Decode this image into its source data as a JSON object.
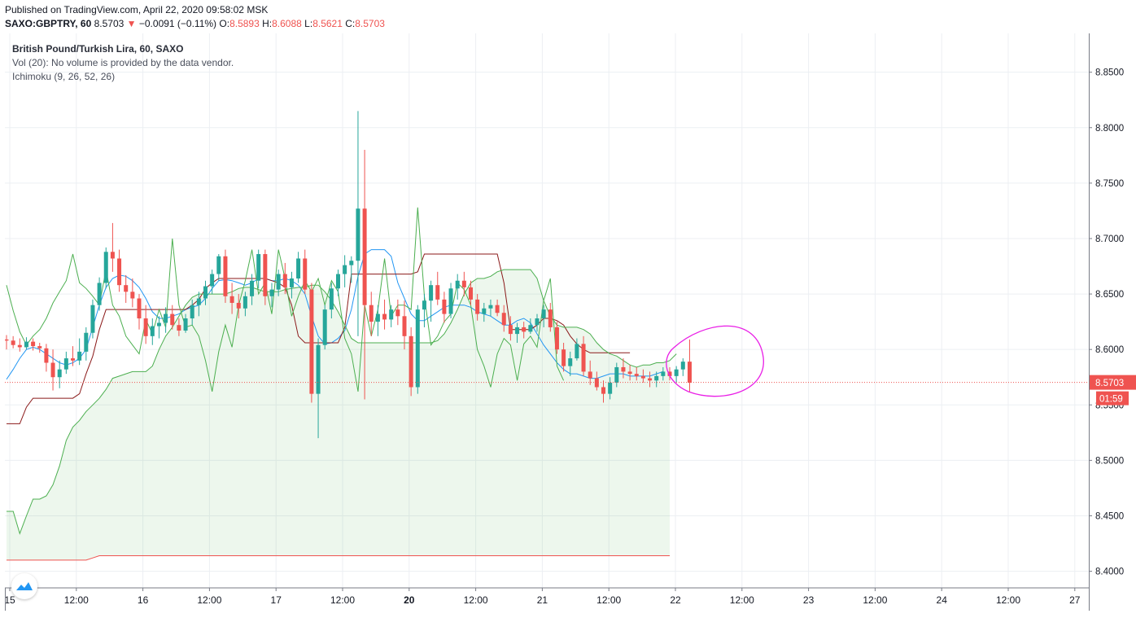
{
  "header": {
    "published": "Published on TradingView.com, April 22, 2020 09:58:02 MSK",
    "symbol": "SAXO:GBPTRY, 60",
    "last": "8.5703",
    "change_arrow": "▼",
    "change": "−0.0091 (−0.11%)",
    "o_label": "O:",
    "o_val": "8.5893",
    "h_label": "H:",
    "h_val": "8.6088",
    "l_label": "L:",
    "l_val": "8.5621",
    "c_label": "C:",
    "c_val": "8.5703"
  },
  "legend": {
    "title": "British Pound/Turkish Lira, 60, SAXO",
    "volume": "Vol (20): No volume is provided by the data vendor.",
    "ichimoku": "Ichimoku (9, 26, 52, 26)"
  },
  "chart_data": {
    "type": "line",
    "title": "British Pound/Turkish Lira, 60, SAXO",
    "ylim": [
      8.385,
      8.885
    ],
    "y_ticks": [
      "8.8500",
      "8.8000",
      "8.7500",
      "8.7000",
      "8.6500",
      "8.6000",
      "8.5500",
      "8.5000",
      "8.4500",
      "8.4000"
    ],
    "x_ticks": [
      "15",
      "12:00",
      "16",
      "12:00",
      "17",
      "12:00",
      "20",
      "12:00",
      "21",
      "12:00",
      "22",
      "12:00",
      "23",
      "12:00",
      "24",
      "12:00",
      "27"
    ],
    "x_tick_bold": [
      false,
      false,
      false,
      false,
      false,
      false,
      true,
      false,
      false,
      false,
      false,
      false,
      false,
      false,
      false,
      false,
      false
    ],
    "last_price_label": "8.5703",
    "countdown_label": "01:59",
    "last_price": 8.5703,
    "colors": {
      "up": "#26a69a",
      "down": "#ef5350",
      "tenkan": "#2196f3",
      "kijun": "#8b1a1a",
      "chikou": "#4caf50",
      "senkou_a": "#4caf50",
      "senkou_b": "#ef5350",
      "annotation": "#e91ee6"
    },
    "bar_count": 110,
    "candles": [
      [
        8.609,
        8.613,
        8.6,
        8.608
      ],
      [
        8.608,
        8.612,
        8.601,
        8.604
      ],
      [
        8.604,
        8.61,
        8.598,
        8.602
      ],
      [
        8.602,
        8.611,
        8.6,
        8.607
      ],
      [
        8.607,
        8.61,
        8.599,
        8.603
      ],
      [
        8.603,
        8.606,
        8.597,
        8.601
      ],
      [
        8.601,
        8.605,
        8.58,
        8.588
      ],
      [
        8.588,
        8.6,
        8.563,
        8.575
      ],
      [
        8.575,
        8.59,
        8.565,
        8.582
      ],
      [
        8.582,
        8.598,
        8.578,
        8.592
      ],
      [
        8.592,
        8.603,
        8.585,
        8.59
      ],
      [
        8.59,
        8.61,
        8.586,
        8.598
      ],
      [
        8.598,
        8.62,
        8.59,
        8.615
      ],
      [
        8.615,
        8.645,
        8.61,
        8.64
      ],
      [
        8.64,
        8.665,
        8.635,
        8.66
      ],
      [
        8.66,
        8.692,
        8.655,
        8.688
      ],
      [
        8.688,
        8.714,
        8.67,
        8.682
      ],
      [
        8.682,
        8.69,
        8.652,
        8.658
      ],
      [
        8.658,
        8.667,
        8.642,
        8.652
      ],
      [
        8.652,
        8.664,
        8.638,
        8.646
      ],
      [
        8.646,
        8.65,
        8.618,
        8.628
      ],
      [
        8.628,
        8.64,
        8.605,
        8.612
      ],
      [
        8.612,
        8.628,
        8.604,
        8.621
      ],
      [
        8.621,
        8.63,
        8.61,
        8.624
      ],
      [
        8.624,
        8.638,
        8.615,
        8.632
      ],
      [
        8.632,
        8.64,
        8.618,
        8.622
      ],
      [
        8.622,
        8.628,
        8.612,
        8.617
      ],
      [
        8.617,
        8.632,
        8.615,
        8.628
      ],
      [
        8.628,
        8.645,
        8.622,
        8.64
      ],
      [
        8.64,
        8.652,
        8.63,
        8.646
      ],
      [
        8.646,
        8.662,
        8.64,
        8.657
      ],
      [
        8.657,
        8.672,
        8.65,
        8.668
      ],
      [
        8.668,
        8.686,
        8.662,
        8.684
      ],
      [
        8.684,
        8.69,
        8.642,
        8.648
      ],
      [
        8.648,
        8.66,
        8.632,
        8.642
      ],
      [
        8.642,
        8.65,
        8.628,
        8.637
      ],
      [
        8.637,
        8.652,
        8.63,
        8.648
      ],
      [
        8.648,
        8.668,
        8.64,
        8.662
      ],
      [
        8.662,
        8.69,
        8.655,
        8.686
      ],
      [
        8.686,
        8.69,
        8.64,
        8.648
      ],
      [
        8.648,
        8.66,
        8.638,
        8.654
      ],
      [
        8.654,
        8.672,
        8.648,
        8.668
      ],
      [
        8.668,
        8.678,
        8.65,
        8.656
      ],
      [
        8.656,
        8.67,
        8.646,
        8.664
      ],
      [
        8.664,
        8.688,
        8.66,
        8.682
      ],
      [
        8.682,
        8.69,
        8.65,
        8.654
      ],
      [
        8.654,
        8.66,
        8.552,
        8.56
      ],
      [
        8.56,
        8.61,
        8.52,
        8.604
      ],
      [
        8.604,
        8.64,
        8.6,
        8.636
      ],
      [
        8.636,
        8.66,
        8.628,
        8.655
      ],
      [
        8.655,
        8.672,
        8.648,
        8.668
      ],
      [
        8.668,
        8.685,
        8.656,
        8.676
      ],
      [
        8.676,
        8.684,
        8.66,
        8.68
      ],
      [
        8.68,
        8.815,
        8.612,
        8.727
      ],
      [
        8.727,
        8.78,
        8.555,
        8.64
      ],
      [
        8.64,
        8.652,
        8.612,
        8.625
      ],
      [
        8.625,
        8.64,
        8.612,
        8.632
      ],
      [
        8.632,
        8.645,
        8.618,
        8.627
      ],
      [
        8.627,
        8.64,
        8.62,
        8.636
      ],
      [
        8.636,
        8.645,
        8.622,
        8.63
      ],
      [
        8.63,
        8.644,
        8.6,
        8.612
      ],
      [
        8.612,
        8.62,
        8.558,
        8.566
      ],
      [
        8.566,
        8.64,
        8.56,
        8.636
      ],
      [
        8.636,
        8.65,
        8.62,
        8.644
      ],
      [
        8.644,
        8.662,
        8.625,
        8.658
      ],
      [
        8.658,
        8.67,
        8.64,
        8.645
      ],
      [
        8.645,
        8.652,
        8.624,
        8.632
      ],
      [
        8.632,
        8.66,
        8.628,
        8.655
      ],
      [
        8.655,
        8.668,
        8.645,
        8.662
      ],
      [
        8.662,
        8.67,
        8.648,
        8.656
      ],
      [
        8.656,
        8.662,
        8.64,
        8.645
      ],
      [
        8.645,
        8.65,
        8.626,
        8.632
      ],
      [
        8.632,
        8.642,
        8.625,
        8.637
      ],
      [
        8.637,
        8.645,
        8.63,
        8.64
      ],
      [
        8.64,
        8.645,
        8.63,
        8.633
      ],
      [
        8.633,
        8.64,
        8.616,
        8.622
      ],
      [
        8.622,
        8.63,
        8.608,
        8.614
      ],
      [
        8.614,
        8.624,
        8.606,
        8.62
      ],
      [
        8.62,
        8.625,
        8.61,
        8.616
      ],
      [
        8.616,
        8.628,
        8.614,
        8.622
      ],
      [
        8.622,
        8.632,
        8.616,
        8.628
      ],
      [
        8.628,
        8.64,
        8.62,
        8.636
      ],
      [
        8.636,
        8.642,
        8.616,
        8.62
      ],
      [
        8.62,
        8.625,
        8.596,
        8.6
      ],
      [
        8.6,
        8.606,
        8.58,
        8.585
      ],
      [
        8.585,
        8.598,
        8.576,
        8.592
      ],
      [
        8.592,
        8.61,
        8.59,
        8.605
      ],
      [
        8.605,
        8.612,
        8.576,
        8.58
      ],
      [
        8.58,
        8.59,
        8.568,
        8.574
      ],
      [
        8.574,
        8.58,
        8.563,
        8.566
      ],
      [
        8.566,
        8.572,
        8.552,
        8.56
      ],
      [
        8.56,
        8.575,
        8.555,
        8.57
      ],
      [
        8.57,
        8.588,
        8.566,
        8.584
      ],
      [
        8.584,
        8.592,
        8.574,
        8.58
      ],
      [
        8.58,
        8.586,
        8.572,
        8.578
      ],
      [
        8.578,
        8.584,
        8.572,
        8.576
      ],
      [
        8.576,
        8.582,
        8.57,
        8.574
      ],
      [
        8.574,
        8.58,
        8.566,
        8.572
      ],
      [
        8.572,
        8.58,
        8.566,
        8.576
      ],
      [
        8.576,
        8.584,
        8.572,
        8.58
      ],
      [
        8.58,
        8.584,
        8.572,
        8.576
      ],
      [
        8.576,
        8.585,
        8.57,
        8.582
      ],
      [
        8.582,
        8.592,
        8.576,
        8.589
      ],
      [
        8.589,
        8.609,
        8.562,
        8.57
      ]
    ],
    "series": [
      {
        "name": "Tenkan",
        "color": "#2196f3",
        "x_start": 0,
        "values": [
          8.573,
          8.582,
          8.592,
          8.6,
          8.602,
          8.6,
          8.596,
          8.592,
          8.588,
          8.586,
          8.588,
          8.592,
          8.6,
          8.62,
          8.64,
          8.656,
          8.664,
          8.667,
          8.666,
          8.662,
          8.656,
          8.646,
          8.634,
          8.628,
          8.628,
          8.63,
          8.632,
          8.636,
          8.638,
          8.64,
          8.646,
          8.655,
          8.662,
          8.663,
          8.662,
          8.66,
          8.658,
          8.66,
          8.664,
          8.664,
          8.662,
          8.662,
          8.664,
          8.662,
          8.658,
          8.65,
          8.63,
          8.612,
          8.605,
          8.606,
          8.61,
          8.617,
          8.636,
          8.666,
          8.686,
          8.69,
          8.69,
          8.69,
          8.684,
          8.66,
          8.646,
          8.632,
          8.626,
          8.626,
          8.63,
          8.634,
          8.638,
          8.64,
          8.64,
          8.64,
          8.638,
          8.634,
          8.632,
          8.63,
          8.626,
          8.622,
          8.622,
          8.626,
          8.628,
          8.624,
          8.614,
          8.604,
          8.596,
          8.588,
          8.582,
          8.578,
          8.578,
          8.576,
          8.574,
          8.574,
          8.576,
          8.578,
          8.578,
          8.578,
          8.576,
          8.576,
          8.576,
          8.576,
          8.578,
          8.58
        ]
      },
      {
        "name": "Kijun",
        "color": "#8b1a1a",
        "x_start": 0,
        "values": [
          8.533,
          8.533,
          8.533,
          8.548,
          8.556,
          8.556,
          8.556,
          8.556,
          8.556,
          8.556,
          8.556,
          8.56,
          8.578,
          8.594,
          8.618,
          8.636,
          8.636,
          8.636,
          8.636,
          8.636,
          8.636,
          8.636,
          8.636,
          8.636,
          8.636,
          8.636,
          8.636,
          8.636,
          8.64,
          8.645,
          8.655,
          8.66,
          8.664,
          8.664,
          8.664,
          8.664,
          8.664,
          8.664,
          8.664,
          8.664,
          8.662,
          8.66,
          8.656,
          8.64,
          8.612,
          8.606,
          8.606,
          8.606,
          8.606,
          8.606,
          8.606,
          8.62,
          8.668,
          8.668,
          8.668,
          8.668,
          8.668,
          8.668,
          8.668,
          8.668,
          8.668,
          8.668,
          8.67,
          8.686,
          8.686,
          8.686,
          8.686,
          8.686,
          8.686,
          8.686,
          8.686,
          8.686,
          8.686,
          8.686,
          8.686,
          8.66,
          8.618,
          8.618,
          8.618,
          8.618,
          8.622,
          8.628,
          8.628,
          8.626,
          8.622,
          8.612,
          8.605,
          8.6,
          8.597,
          8.597,
          8.597,
          8.597,
          8.597,
          8.597,
          8.597
        ]
      },
      {
        "name": "Chikou",
        "color": "#4caf50",
        "x_start": 0,
        "values": [
          8.658,
          8.635,
          8.616,
          8.604,
          8.612,
          8.618,
          8.628,
          8.642,
          8.652,
          8.662,
          8.686,
          8.66,
          8.655,
          8.648,
          8.64,
          8.672,
          8.64,
          8.63,
          8.612,
          8.604,
          8.596,
          8.627,
          8.614,
          8.636,
          8.62,
          8.7,
          8.64,
          8.62,
          8.622,
          8.612,
          8.59,
          8.562,
          8.598,
          8.622,
          8.602,
          8.64,
          8.662,
          8.69,
          8.65,
          8.66,
          8.632,
          8.69,
          8.664,
          8.63,
          8.648,
          8.662,
          8.652,
          8.664,
          8.64,
          8.662,
          8.652,
          8.61,
          8.596,
          8.562,
          8.64,
          8.612,
          8.636,
          8.682,
          8.63,
          8.64,
          8.64,
          8.636,
          8.728,
          8.648,
          8.604,
          8.612,
          8.625,
          8.632,
          8.66,
          8.654,
          8.64,
          8.6,
          8.585,
          8.566,
          8.596,
          8.61,
          8.604,
          8.572,
          8.605,
          8.612,
          8.602,
          8.644,
          8.664,
          8.585,
          8.572
        ]
      },
      {
        "name": "Senkou A",
        "color": "#4caf50",
        "x_start": 0,
        "values": [
          8.454,
          8.454,
          8.434,
          8.45,
          8.465,
          8.465,
          8.468,
          8.478,
          8.495,
          8.518,
          8.53,
          8.536,
          8.544,
          8.55,
          8.556,
          8.564,
          8.574,
          8.576,
          8.578,
          8.58,
          8.58,
          8.58,
          8.585,
          8.6,
          8.612,
          8.62,
          8.63,
          8.64,
          8.647,
          8.65,
          8.65,
          8.65,
          8.65,
          8.65,
          8.652,
          8.655,
          8.656,
          8.656,
          8.654,
          8.652,
          8.652,
          8.652,
          8.654,
          8.655,
          8.656,
          8.656,
          8.658,
          8.658,
          8.652,
          8.644,
          8.634,
          8.622,
          8.61,
          8.606,
          8.606,
          8.606,
          8.606,
          8.606,
          8.606,
          8.606,
          8.606,
          8.606,
          8.606,
          8.606,
          8.606,
          8.608,
          8.614,
          8.624,
          8.636,
          8.65,
          8.66,
          8.664,
          8.664,
          8.666,
          8.67,
          8.672,
          8.672,
          8.672,
          8.672,
          8.672,
          8.664,
          8.644,
          8.63,
          8.622,
          8.62,
          8.62,
          8.62,
          8.618,
          8.614,
          8.606,
          8.6,
          8.596,
          8.594,
          8.59,
          8.586,
          8.584,
          8.586,
          8.586,
          8.588,
          8.588,
          8.59,
          8.596
        ]
      },
      {
        "name": "Senkou B",
        "color": "#ef5350",
        "x_start": 0,
        "values": [
          8.41,
          8.41,
          8.41,
          8.41,
          8.41,
          8.41,
          8.41,
          8.41,
          8.41,
          8.41,
          8.41,
          8.41,
          8.41,
          8.412,
          8.414,
          8.414,
          8.414,
          8.414,
          8.414,
          8.414,
          8.414,
          8.414,
          8.414,
          8.414,
          8.414,
          8.414,
          8.414,
          8.414,
          8.414,
          8.414,
          8.414,
          8.414,
          8.414,
          8.414,
          8.414,
          8.414,
          8.414,
          8.414,
          8.414,
          8.414,
          8.414,
          8.414,
          8.414,
          8.414,
          8.414,
          8.414,
          8.414,
          8.414,
          8.414,
          8.414,
          8.414,
          8.414,
          8.414,
          8.414,
          8.414,
          8.414,
          8.414,
          8.414,
          8.414,
          8.414,
          8.414,
          8.414,
          8.414,
          8.414,
          8.414,
          8.414,
          8.414,
          8.414,
          8.414,
          8.414,
          8.414,
          8.414,
          8.414,
          8.414,
          8.414,
          8.414,
          8.414,
          8.414,
          8.414,
          8.414,
          8.414,
          8.414,
          8.414,
          8.414,
          8.414,
          8.414,
          8.414,
          8.414,
          8.414,
          8.414,
          8.414,
          8.414,
          8.414,
          8.414,
          8.414,
          8.414,
          8.414,
          8.414,
          8.414,
          8.414,
          8.414
        ]
      }
    ]
  }
}
